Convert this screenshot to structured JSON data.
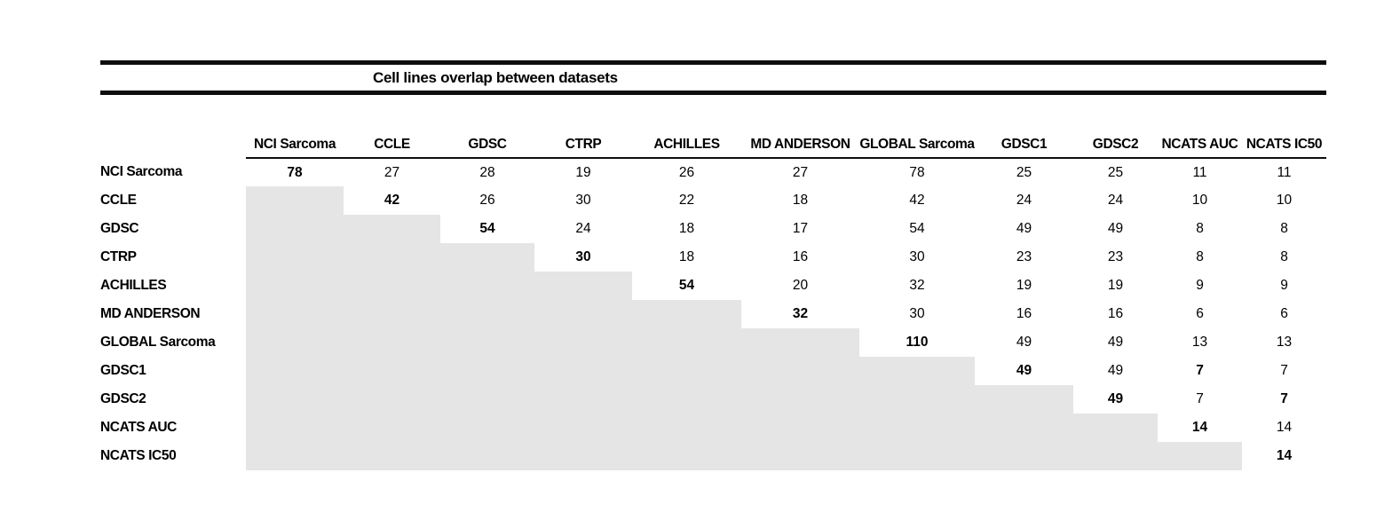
{
  "title": "Cell lines overlap between datasets",
  "chart_data": {
    "type": "table",
    "title": "Cell lines overlap between datasets",
    "description": "Symmetric overlap matrix; only upper triangle and diagonal show counts, lower triangle is shaded gray",
    "row_labels": [
      "NCI Sarcoma",
      "CCLE",
      "GDSC",
      "CTRP",
      "ACHILLES",
      "MD ANDERSON",
      "GLOBAL Sarcoma",
      "GDSC1",
      "GDSC2",
      "NCATS AUC",
      "NCATS IC50"
    ],
    "col_labels": [
      "NCI Sarcoma",
      "CCLE",
      "GDSC",
      "CTRP",
      "ACHILLES",
      "MD ANDERSON",
      "GLOBAL Sarcoma",
      "GDSC1",
      "GDSC2",
      "NCATS AUC",
      "NCATS IC50"
    ],
    "matrix": [
      [
        78,
        27,
        28,
        19,
        26,
        27,
        78,
        25,
        25,
        11,
        11
      ],
      [
        null,
        42,
        26,
        30,
        22,
        18,
        42,
        24,
        24,
        10,
        10
      ],
      [
        null,
        null,
        54,
        24,
        18,
        17,
        54,
        49,
        49,
        8,
        8
      ],
      [
        null,
        null,
        null,
        30,
        18,
        16,
        30,
        23,
        23,
        8,
        8
      ],
      [
        null,
        null,
        null,
        null,
        54,
        20,
        32,
        19,
        19,
        9,
        9
      ],
      [
        null,
        null,
        null,
        null,
        null,
        32,
        30,
        16,
        16,
        6,
        6
      ],
      [
        null,
        null,
        null,
        null,
        null,
        null,
        110,
        49,
        49,
        13,
        13
      ],
      [
        null,
        null,
        null,
        null,
        null,
        null,
        null,
        49,
        49,
        7,
        7
      ],
      [
        null,
        null,
        null,
        null,
        null,
        null,
        null,
        null,
        49,
        7,
        7
      ],
      [
        null,
        null,
        null,
        null,
        null,
        null,
        null,
        null,
        null,
        14,
        14
      ],
      [
        null,
        null,
        null,
        null,
        null,
        null,
        null,
        null,
        null,
        null,
        14
      ]
    ],
    "bold_cells": [
      [
        0,
        0
      ],
      [
        1,
        1
      ],
      [
        2,
        2
      ],
      [
        3,
        3
      ],
      [
        4,
        4
      ],
      [
        5,
        5
      ],
      [
        6,
        6
      ],
      [
        7,
        7
      ],
      [
        8,
        8
      ],
      [
        9,
        9
      ],
      [
        10,
        10
      ],
      [
        7,
        9
      ],
      [
        8,
        10
      ]
    ],
    "shaded_region": "lower-triangle"
  },
  "colors": {
    "background": "#ffffff",
    "text": "#000000",
    "rule": "#0d0d0d",
    "lower_triangle_shade": "#e6e5e6"
  }
}
